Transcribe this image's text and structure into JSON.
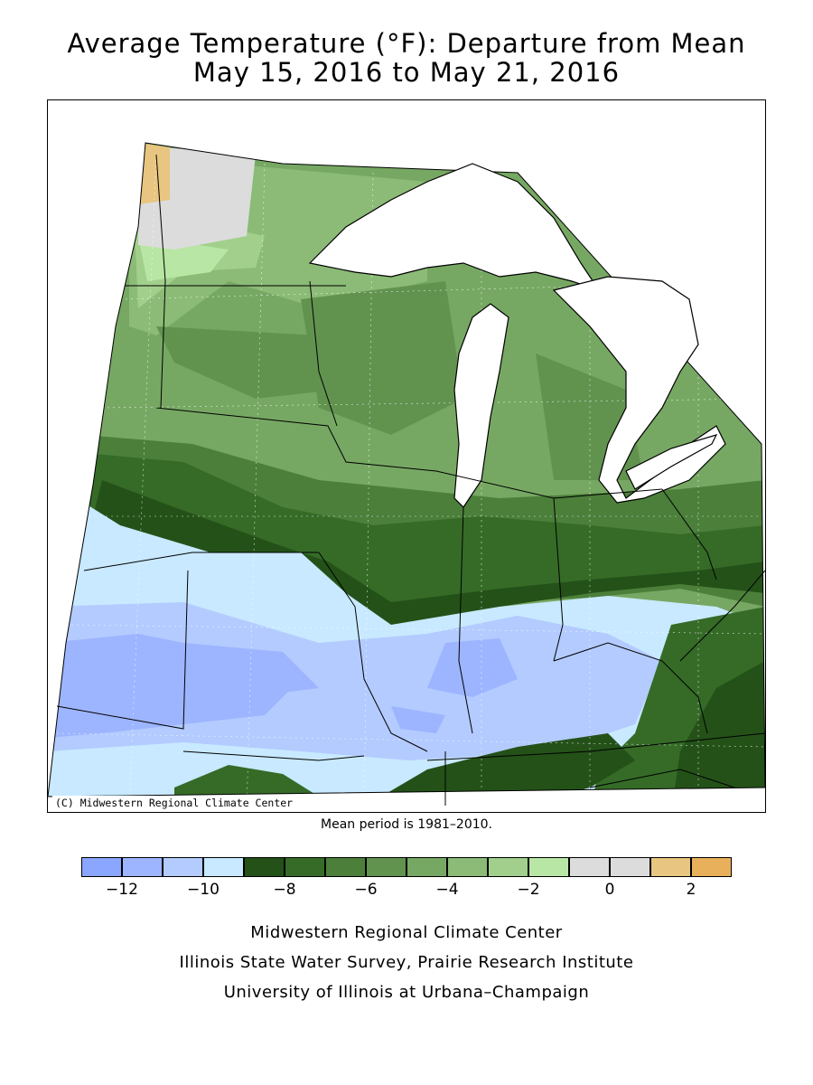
{
  "title_line1": "Average Temperature (°F): Departure from Mean",
  "title_line2": "May 15, 2016 to May 21, 2016",
  "credit": "(C) Midwestern Regional Climate Center",
  "mean_period": "Mean period is 1981–2010.",
  "legend": {
    "bins": [
      {
        "color": "#8aa6ff"
      },
      {
        "color": "#9db5ff"
      },
      {
        "color": "#b3cbff"
      },
      {
        "color": "#c8e9ff"
      },
      {
        "color": "#245118"
      },
      {
        "color": "#356b27"
      },
      {
        "color": "#4b7f3a"
      },
      {
        "color": "#61934f"
      },
      {
        "color": "#77a863"
      },
      {
        "color": "#8bbb76"
      },
      {
        "color": "#a2d08c"
      },
      {
        "color": "#b8e6a4"
      },
      {
        "color": "#dcdcdc"
      },
      {
        "color": "#dcdcdc"
      },
      {
        "color": "#e8c580"
      },
      {
        "color": "#e8b05a"
      }
    ],
    "tick_labels": [
      "−12",
      "−10",
      "−8",
      "−6",
      "−4",
      "−2",
      "0",
      "2"
    ]
  },
  "footer": {
    "line1": "Midwestern Regional Climate Center",
    "line2": "Illinois State Water Survey, Prairie Research Institute",
    "line3": "University of Illinois at Urbana–Champaign"
  }
}
